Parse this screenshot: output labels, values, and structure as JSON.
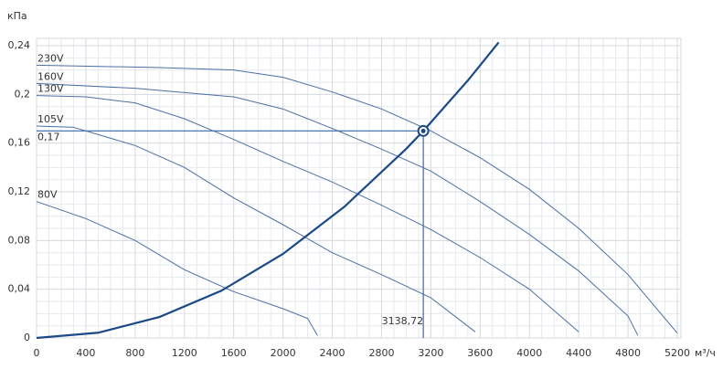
{
  "chart_data": {
    "type": "line",
    "x_unit": "м³/ч",
    "y_unit": "кПа",
    "xlim": [
      0,
      5200
    ],
    "ylim": [
      0,
      0.246
    ],
    "xticks": [
      0,
      400,
      800,
      1200,
      1600,
      2000,
      2400,
      2800,
      3200,
      3600,
      4000,
      4400,
      4800,
      5200
    ],
    "yticks": [
      0,
      {
        "value": 0.04,
        "label": "0,04"
      },
      {
        "value": 0.08,
        "label": "0,08"
      },
      {
        "value": 0.12,
        "label": "0,12"
      },
      {
        "value": 0.16,
        "label": "0,16"
      },
      {
        "value": 0.2,
        "label": "0,2"
      },
      {
        "value": 0.24,
        "label": "0,24"
      }
    ],
    "grid": true,
    "series": [
      {
        "name": "230V",
        "color": "#4a6fa5",
        "x": [
          0,
          1000,
          1600,
          2000,
          2400,
          2800,
          3200,
          3600,
          4000,
          4400,
          4800,
          5200
        ],
        "values": [
          0.224,
          0.222,
          0.22,
          0.214,
          0.202,
          0.188,
          0.17,
          0.148,
          0.122,
          0.09,
          0.052,
          0.004
        ]
      },
      {
        "name": "160V",
        "color": "#4a6fa5",
        "x": [
          0,
          800,
          1600,
          2000,
          2400,
          2800,
          3200,
          3600,
          4000,
          4400,
          4800,
          4880
        ],
        "values": [
          0.209,
          0.205,
          0.198,
          0.188,
          0.172,
          0.155,
          0.137,
          0.112,
          0.085,
          0.055,
          0.018,
          0.002
        ]
      },
      {
        "name": "130V",
        "color": "#4a6fa5",
        "x": [
          0,
          400,
          800,
          1200,
          1600,
          2000,
          2400,
          2800,
          3200,
          3600,
          4000,
          4400
        ],
        "values": [
          0.199,
          0.198,
          0.193,
          0.18,
          0.163,
          0.145,
          0.128,
          0.109,
          0.089,
          0.066,
          0.04,
          0.005
        ]
      },
      {
        "name": "105V",
        "color": "#4a6fa5",
        "x": [
          0,
          300,
          800,
          1200,
          1600,
          2000,
          2400,
          2800,
          3200,
          3560
        ],
        "values": [
          0.174,
          0.173,
          0.158,
          0.14,
          0.115,
          0.093,
          0.07,
          0.052,
          0.033,
          0.005
        ]
      },
      {
        "name": "80V",
        "color": "#4a6fa5",
        "x": [
          0,
          400,
          800,
          1200,
          1600,
          2000,
          2200,
          2280
        ],
        "values": [
          0.112,
          0.098,
          0.08,
          0.056,
          0.038,
          0.024,
          0.016,
          0.002
        ]
      }
    ],
    "system_curve": {
      "color": "#1c4a86",
      "x": [
        0,
        500,
        1000,
        1500,
        2000,
        2500,
        3000,
        3138.72,
        3500,
        3750
      ],
      "values": [
        0,
        0.0043,
        0.0173,
        0.0388,
        0.069,
        0.1079,
        0.1553,
        0.17,
        0.2114,
        0.2427
      ]
    },
    "operating_point": {
      "x": 3138.72,
      "y": 0.17,
      "x_label": "3138,72",
      "y_label": "0,17",
      "color": "#1c4a86"
    }
  }
}
